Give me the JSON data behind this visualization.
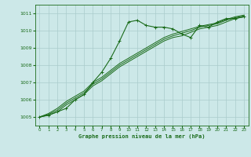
{
  "title": "Graphe pression niveau de la mer (hPa)",
  "bg_color": "#cce8e8",
  "grid_color": "#aacccc",
  "line_color": "#1a6b1a",
  "marker_color": "#1a6b1a",
  "ylim": [
    1004.5,
    1011.5
  ],
  "yticks": [
    1005,
    1006,
    1007,
    1008,
    1009,
    1010,
    1011
  ],
  "xlim": [
    -0.5,
    23.5
  ],
  "xticks": [
    0,
    1,
    2,
    3,
    4,
    5,
    6,
    7,
    8,
    9,
    10,
    11,
    12,
    13,
    14,
    15,
    16,
    17,
    18,
    19,
    20,
    21,
    22,
    23
  ],
  "series": [
    [
      1005.0,
      1005.1,
      1005.3,
      1005.5,
      1006.0,
      1006.3,
      1007.0,
      1007.6,
      1008.4,
      1009.4,
      1010.5,
      1010.6,
      1010.3,
      1010.2,
      1010.2,
      1010.1,
      1009.8,
      1009.6,
      1010.3,
      1010.2,
      1010.5,
      1010.7,
      1010.7,
      1010.8
    ],
    [
      1005.0,
      1005.1,
      1005.3,
      1005.7,
      1006.0,
      1006.3,
      1006.8,
      1007.1,
      1007.5,
      1007.9,
      1008.2,
      1008.5,
      1008.8,
      1009.1,
      1009.4,
      1009.6,
      1009.7,
      1009.9,
      1010.1,
      1010.2,
      1010.3,
      1010.5,
      1010.7,
      1010.8
    ],
    [
      1005.0,
      1005.15,
      1005.4,
      1005.8,
      1006.1,
      1006.4,
      1006.9,
      1007.2,
      1007.6,
      1008.0,
      1008.3,
      1008.6,
      1008.9,
      1009.2,
      1009.5,
      1009.7,
      1009.85,
      1010.0,
      1010.2,
      1010.3,
      1010.4,
      1010.6,
      1010.75,
      1010.85
    ],
    [
      1005.0,
      1005.2,
      1005.5,
      1005.9,
      1006.2,
      1006.5,
      1007.0,
      1007.3,
      1007.7,
      1008.1,
      1008.4,
      1008.7,
      1009.0,
      1009.3,
      1009.6,
      1009.8,
      1009.95,
      1010.1,
      1010.25,
      1010.35,
      1010.45,
      1010.65,
      1010.8,
      1010.9
    ]
  ]
}
